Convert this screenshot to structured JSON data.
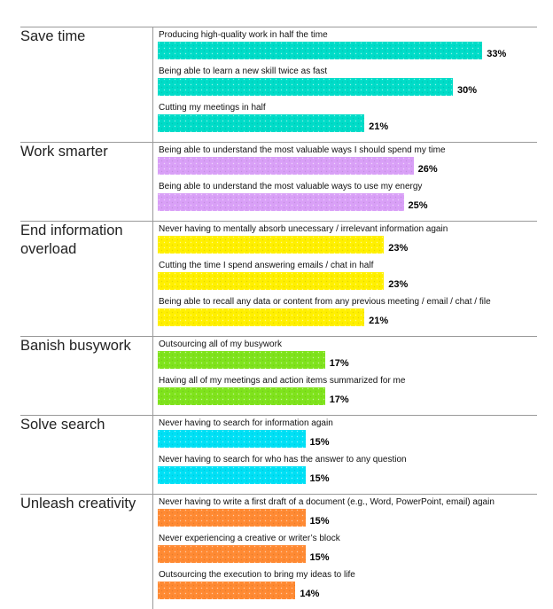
{
  "chart_data": {
    "type": "bar",
    "orientation": "horizontal",
    "grid": false,
    "xlim": [
      0,
      35
    ],
    "groups": [
      {
        "name": "Save time",
        "color": "#00DCC8",
        "items": [
          {
            "label": "Producing high-quality work in half the time",
            "value": 33,
            "value_label": "33%"
          },
          {
            "label": "Being able to learn a new skill twice as fast",
            "value": 30,
            "value_label": "30%"
          },
          {
            "label": "Cutting my meetings in half",
            "value": 21,
            "value_label": "21%"
          }
        ]
      },
      {
        "name": "Work smarter",
        "color": "#D9A0F7",
        "items": [
          {
            "label": "Being able to understand the most valuable ways I should spend my time",
            "value": 26,
            "value_label": "26%"
          },
          {
            "label": "Being able to understand the most valuable ways to use my energy",
            "value": 25,
            "value_label": "25%"
          }
        ]
      },
      {
        "name": "End information overload",
        "color": "#FFF000",
        "items": [
          {
            "label": "Never having to mentally absorb unecessary / irrelevant information again",
            "value": 23,
            "value_label": "23%"
          },
          {
            "label": "Cutting the time I spend answering emails / chat in half",
            "value": 23,
            "value_label": "23%"
          },
          {
            "label": "Being able to recall any data or content from any previous meeting / email / chat / file",
            "value": 21,
            "value_label": "21%"
          }
        ]
      },
      {
        "name": "Banish busywork",
        "color": "#7FE31C",
        "items": [
          {
            "label": "Outsourcing all of my busywork",
            "value": 17,
            "value_label": "17%"
          },
          {
            "label": "Having all of my meetings and action items summarized for me",
            "value": 17,
            "value_label": "17%"
          }
        ]
      },
      {
        "name": "Solve search",
        "color": "#00E0F5",
        "items": [
          {
            "label": "Never having to search for information again",
            "value": 15,
            "value_label": "15%"
          },
          {
            "label": "Never having to search for who has the answer to any question",
            "value": 15,
            "value_label": "15%"
          }
        ]
      },
      {
        "name": "Unleash creativity",
        "color": "#FF8A33",
        "items": [
          {
            "label": "Never having to write a first draft of a document (e.g., Word, PowerPoint, email) again",
            "value": 15,
            "value_label": "15%"
          },
          {
            "label": "Never experiencing a creative or writer’s block",
            "value": 15,
            "value_label": "15%"
          },
          {
            "label": "Outsourcing the execution to bring my ideas to life",
            "value": 14,
            "value_label": "14%"
          }
        ]
      }
    ]
  }
}
